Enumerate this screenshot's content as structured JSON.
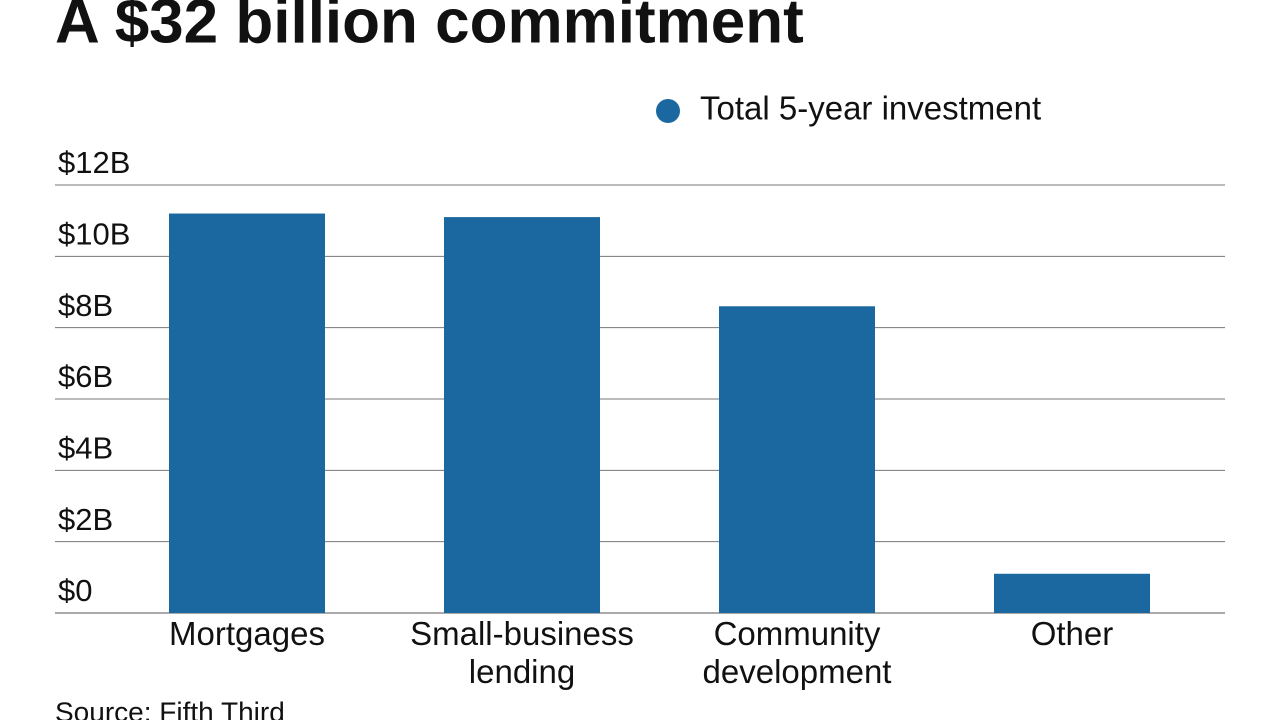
{
  "chart_data": {
    "type": "bar",
    "title": "A $32 billion commitment",
    "source": "Source: Fifth Third",
    "categories": [
      "Mortgages",
      "Small-business lending",
      "Community development",
      "Other"
    ],
    "series": [
      {
        "name": "Total 5-year investment",
        "color": "#1b68a0",
        "values": [
          11.2,
          11.1,
          8.6,
          1.1
        ]
      }
    ],
    "ylim": [
      0,
      12
    ],
    "yticks": [
      {
        "value": 0,
        "label": "$0"
      },
      {
        "value": 2,
        "label": "$2B"
      },
      {
        "value": 4,
        "label": "$4B"
      },
      {
        "value": 6,
        "label": "$6B"
      },
      {
        "value": 8,
        "label": "$8B"
      },
      {
        "value": 10,
        "label": "$10B"
      },
      {
        "value": 12,
        "label": "$12B"
      }
    ],
    "grid": true,
    "legend": "top-right"
  }
}
